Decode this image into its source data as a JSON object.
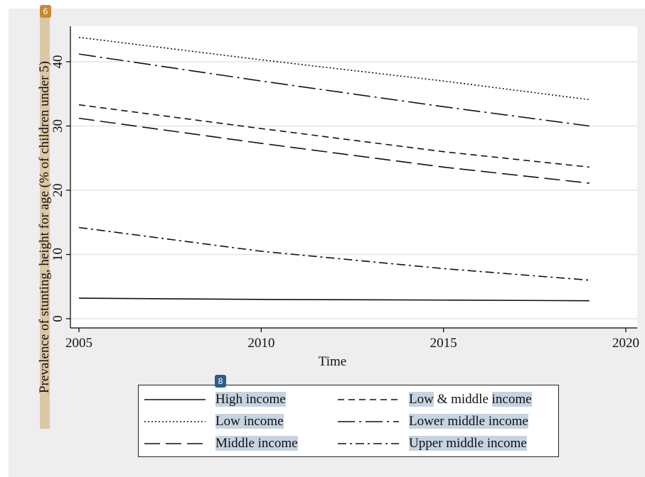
{
  "chart_data": {
    "type": "line",
    "xlabel": "Time",
    "ylabel": "Prevalence of stunting, height for age (% of children under 5)",
    "xlim": [
      2005,
      2020
    ],
    "ylim": [
      -1,
      45.5
    ],
    "xticks": [
      2005,
      2010,
      2015,
      2020
    ],
    "yticks": [
      0,
      10,
      20,
      30,
      40
    ],
    "grid": true,
    "legend_position": "bottom",
    "series": [
      {
        "name": "High income",
        "style": "solid",
        "x": [
          2005,
          2010,
          2015,
          2019
        ],
        "values": [
          3.2,
          3.0,
          2.9,
          2.8
        ]
      },
      {
        "name": "Low & middle income",
        "style": "dash",
        "x": [
          2005,
          2010,
          2015,
          2019
        ],
        "values": [
          33.3,
          29.6,
          26.0,
          23.6
        ]
      },
      {
        "name": "Low income",
        "style": "dot",
        "x": [
          2005,
          2010,
          2015,
          2019
        ],
        "values": [
          43.8,
          40.3,
          37.0,
          34.1
        ]
      },
      {
        "name": "Lower middle income",
        "style": "longdash-dot",
        "x": [
          2005,
          2010,
          2015,
          2019
        ],
        "values": [
          41.2,
          37.0,
          33.0,
          30.0
        ]
      },
      {
        "name": "Middle income",
        "style": "longdash",
        "x": [
          2005,
          2010,
          2015,
          2019
        ],
        "values": [
          31.2,
          27.3,
          23.6,
          21.1
        ]
      },
      {
        "name": "Upper middle income",
        "style": "dashdot",
        "x": [
          2005,
          2010,
          2015,
          2019
        ],
        "values": [
          14.2,
          10.5,
          7.8,
          6.0
        ]
      }
    ]
  },
  "badges": {
    "ylabel_badge": "6",
    "legend_badge": "8"
  }
}
